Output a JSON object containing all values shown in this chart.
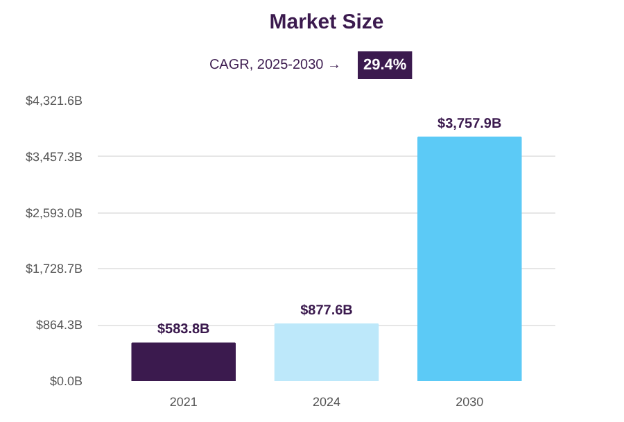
{
  "chart_data": {
    "type": "bar",
    "title": "Market Size",
    "annotations": [
      "CAGR, 2025-2030 →",
      "29.4%"
    ],
    "categories": [
      "2021",
      "2024",
      "2030"
    ],
    "values": [
      583.8,
      877.6,
      3757.9
    ],
    "colors": [
      "#3b1a4e",
      "#bde8fa",
      "#5ccaf6"
    ],
    "value_labels": [
      "$583.8B",
      "$877.6B",
      "$3,757.9B"
    ],
    "ylim": [
      0,
      4321.6
    ],
    "yticks": [
      {
        "value": 0,
        "label": "$0.0B"
      },
      {
        "value": 864.3,
        "label": "$864.3B"
      },
      {
        "value": 1728.7,
        "label": "$1,728.7B"
      },
      {
        "value": 2593.0,
        "label": "$2,593.0B"
      },
      {
        "value": 3457.3,
        "label": "$3,457.3B"
      },
      {
        "value": 4321.6,
        "label": "$4,321.6B"
      }
    ],
    "grid": "y"
  }
}
